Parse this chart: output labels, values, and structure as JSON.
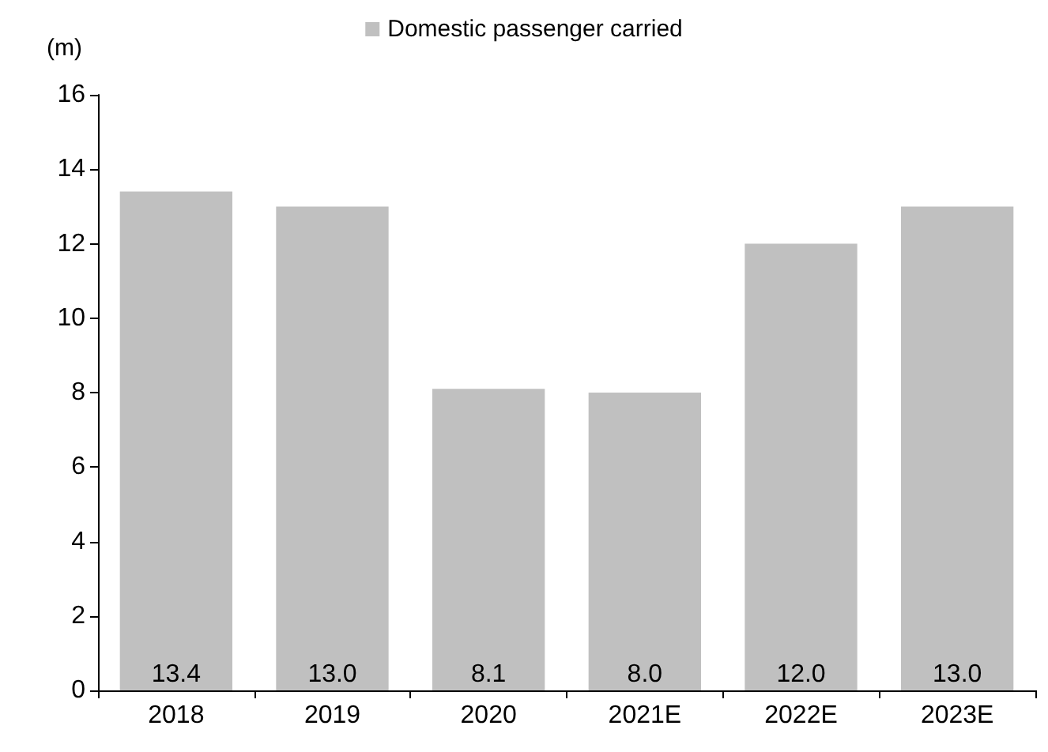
{
  "chart_data": {
    "type": "bar",
    "ylabel": "(m)",
    "categories": [
      "2018",
      "2019",
      "2020",
      "2021E",
      "2022E",
      "2023E"
    ],
    "series": [
      {
        "name": "Domestic passenger carried",
        "color": "#c0c0c0",
        "values": [
          13.4,
          13.0,
          8.1,
          8.0,
          12.0,
          13.0
        ],
        "value_labels": [
          "13.4",
          "13.0",
          "8.1",
          "8.0",
          "12.0",
          "13.0"
        ]
      }
    ],
    "ylim": [
      0,
      16
    ],
    "yticks": [
      0,
      2,
      4,
      6,
      8,
      10,
      12,
      14,
      16
    ],
    "grid": false,
    "legend": "top"
  }
}
